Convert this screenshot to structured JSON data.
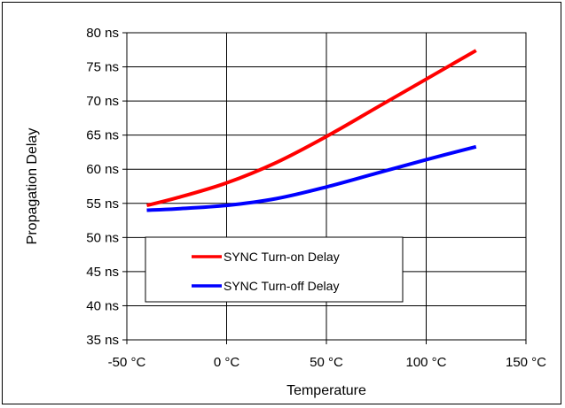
{
  "chart_data": {
    "type": "line",
    "xlabel": "Temperature",
    "ylabel": "Propagation Delay",
    "xlim": [
      -50,
      150
    ],
    "ylim": [
      35,
      80
    ],
    "x_ticks": [
      -50,
      0,
      50,
      100,
      150
    ],
    "y_ticks": [
      35,
      40,
      45,
      50,
      55,
      60,
      65,
      70,
      75,
      80
    ],
    "x_tick_labels": [
      "-50 °C",
      "0 °C",
      "50 °C",
      "100 °C",
      "150 °C"
    ],
    "y_tick_labels": [
      "35 ns",
      "40 ns",
      "45 ns",
      "50 ns",
      "55 ns",
      "60 ns",
      "65 ns",
      "70 ns",
      "75 ns",
      "80 ns"
    ],
    "grid": true,
    "legend_position": "lower-left",
    "series": [
      {
        "name": "SYNC Turn-on Delay",
        "color": "#ff0000",
        "x": [
          -40,
          -25,
          0,
          25,
          50,
          75,
          100,
          125
        ],
        "y": [
          54.7,
          55.8,
          58.0,
          61.0,
          64.8,
          69.0,
          73.2,
          77.4
        ]
      },
      {
        "name": "SYNC Turn-off Delay",
        "color": "#0000ff",
        "x": [
          -40,
          -25,
          0,
          25,
          50,
          75,
          100,
          125
        ],
        "y": [
          54.0,
          54.2,
          54.7,
          55.7,
          57.4,
          59.4,
          61.4,
          63.3
        ]
      }
    ]
  }
}
